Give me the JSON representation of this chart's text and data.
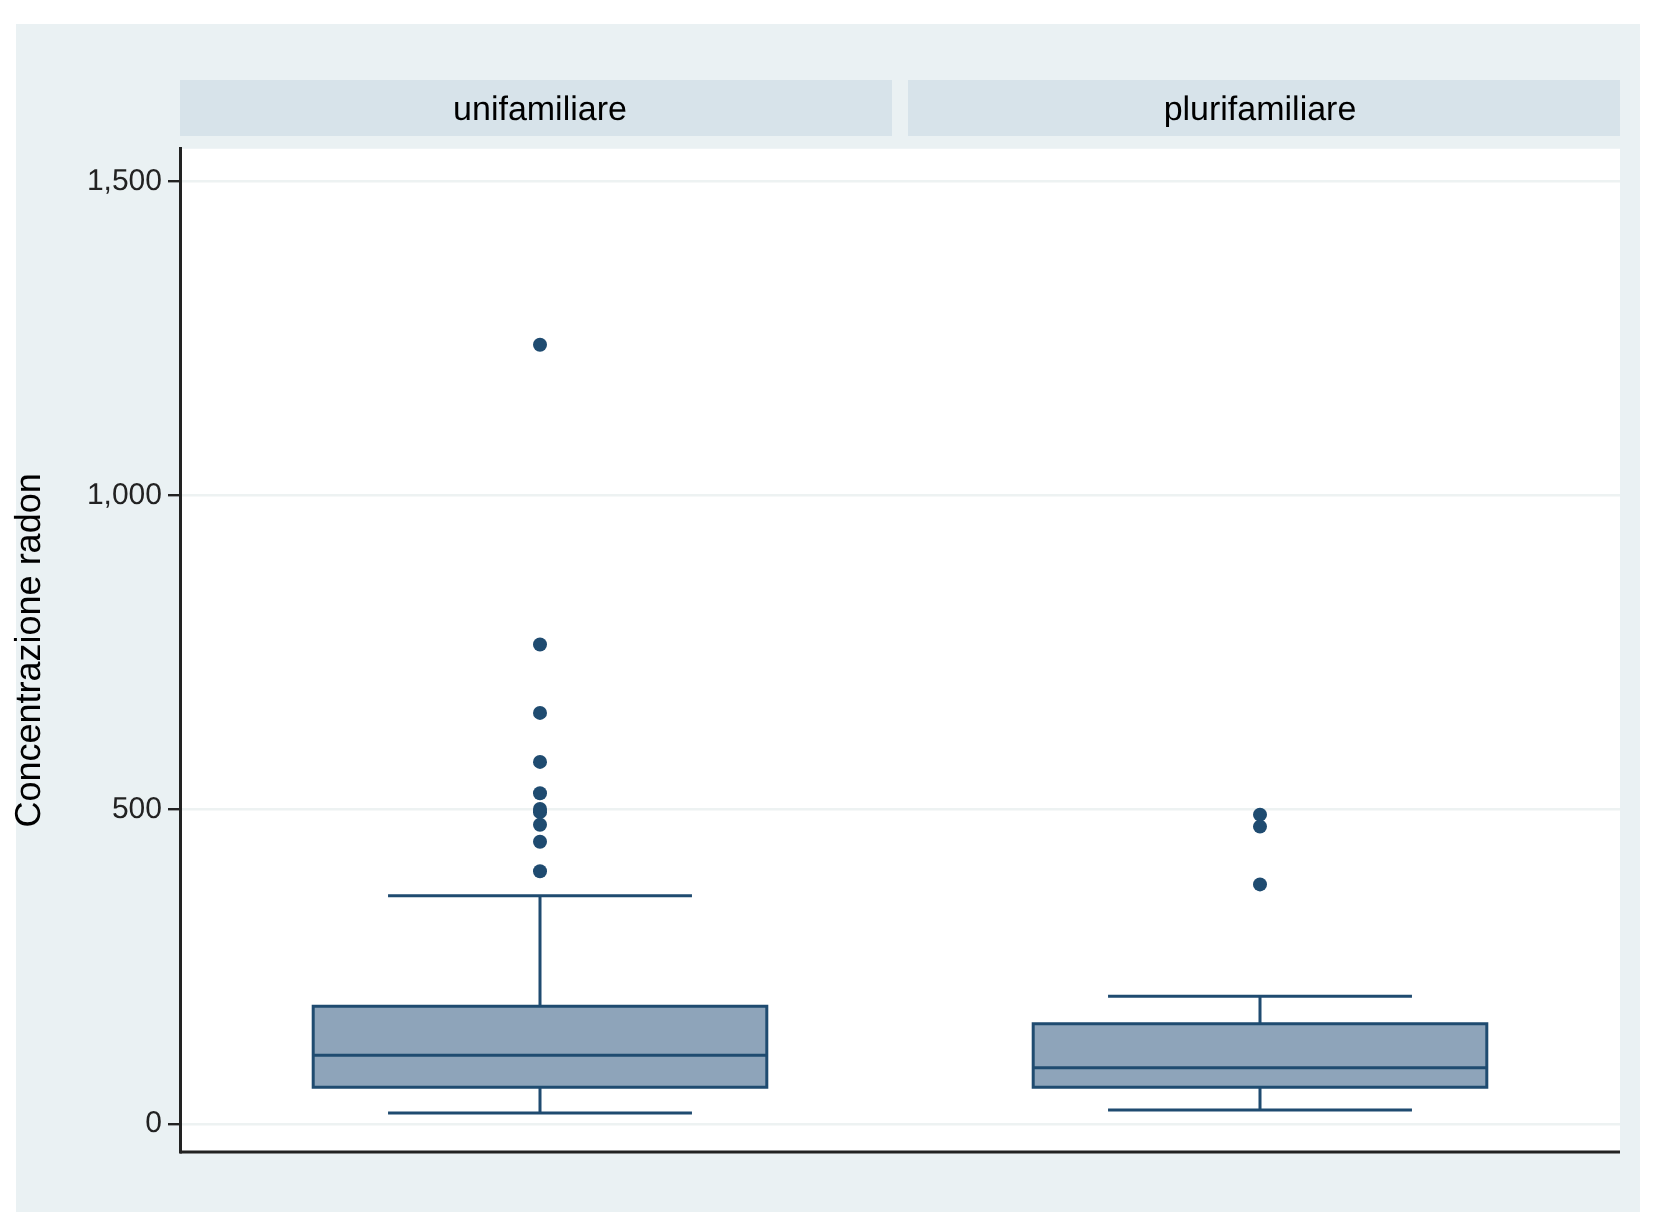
{
  "chart_data": {
    "type": "box",
    "ylabel": "Concentrazione radon",
    "categories": [
      "unifamiliare",
      "plurifamiliare"
    ],
    "color": "#8ea4ba",
    "ylim": [
      -45,
      1552
    ],
    "yticks": [
      {
        "value": 0,
        "label": "0"
      },
      {
        "value": 500,
        "label": "500"
      },
      {
        "value": 1000,
        "label": "1,000"
      },
      {
        "value": 1500,
        "label": "1,500"
      }
    ],
    "grid": "y",
    "boxes": [
      {
        "low": 17,
        "q1": 58,
        "median": 109,
        "q3": 187,
        "high": 363,
        "outliers": [
          1240,
          763,
          654,
          576,
          526,
          501,
          496,
          476,
          449,
          402
        ]
      },
      {
        "low": 22,
        "q1": 58,
        "median": 89,
        "q3": 159,
        "high": 203,
        "outliers": [
          492,
          473,
          381
        ]
      }
    ]
  }
}
